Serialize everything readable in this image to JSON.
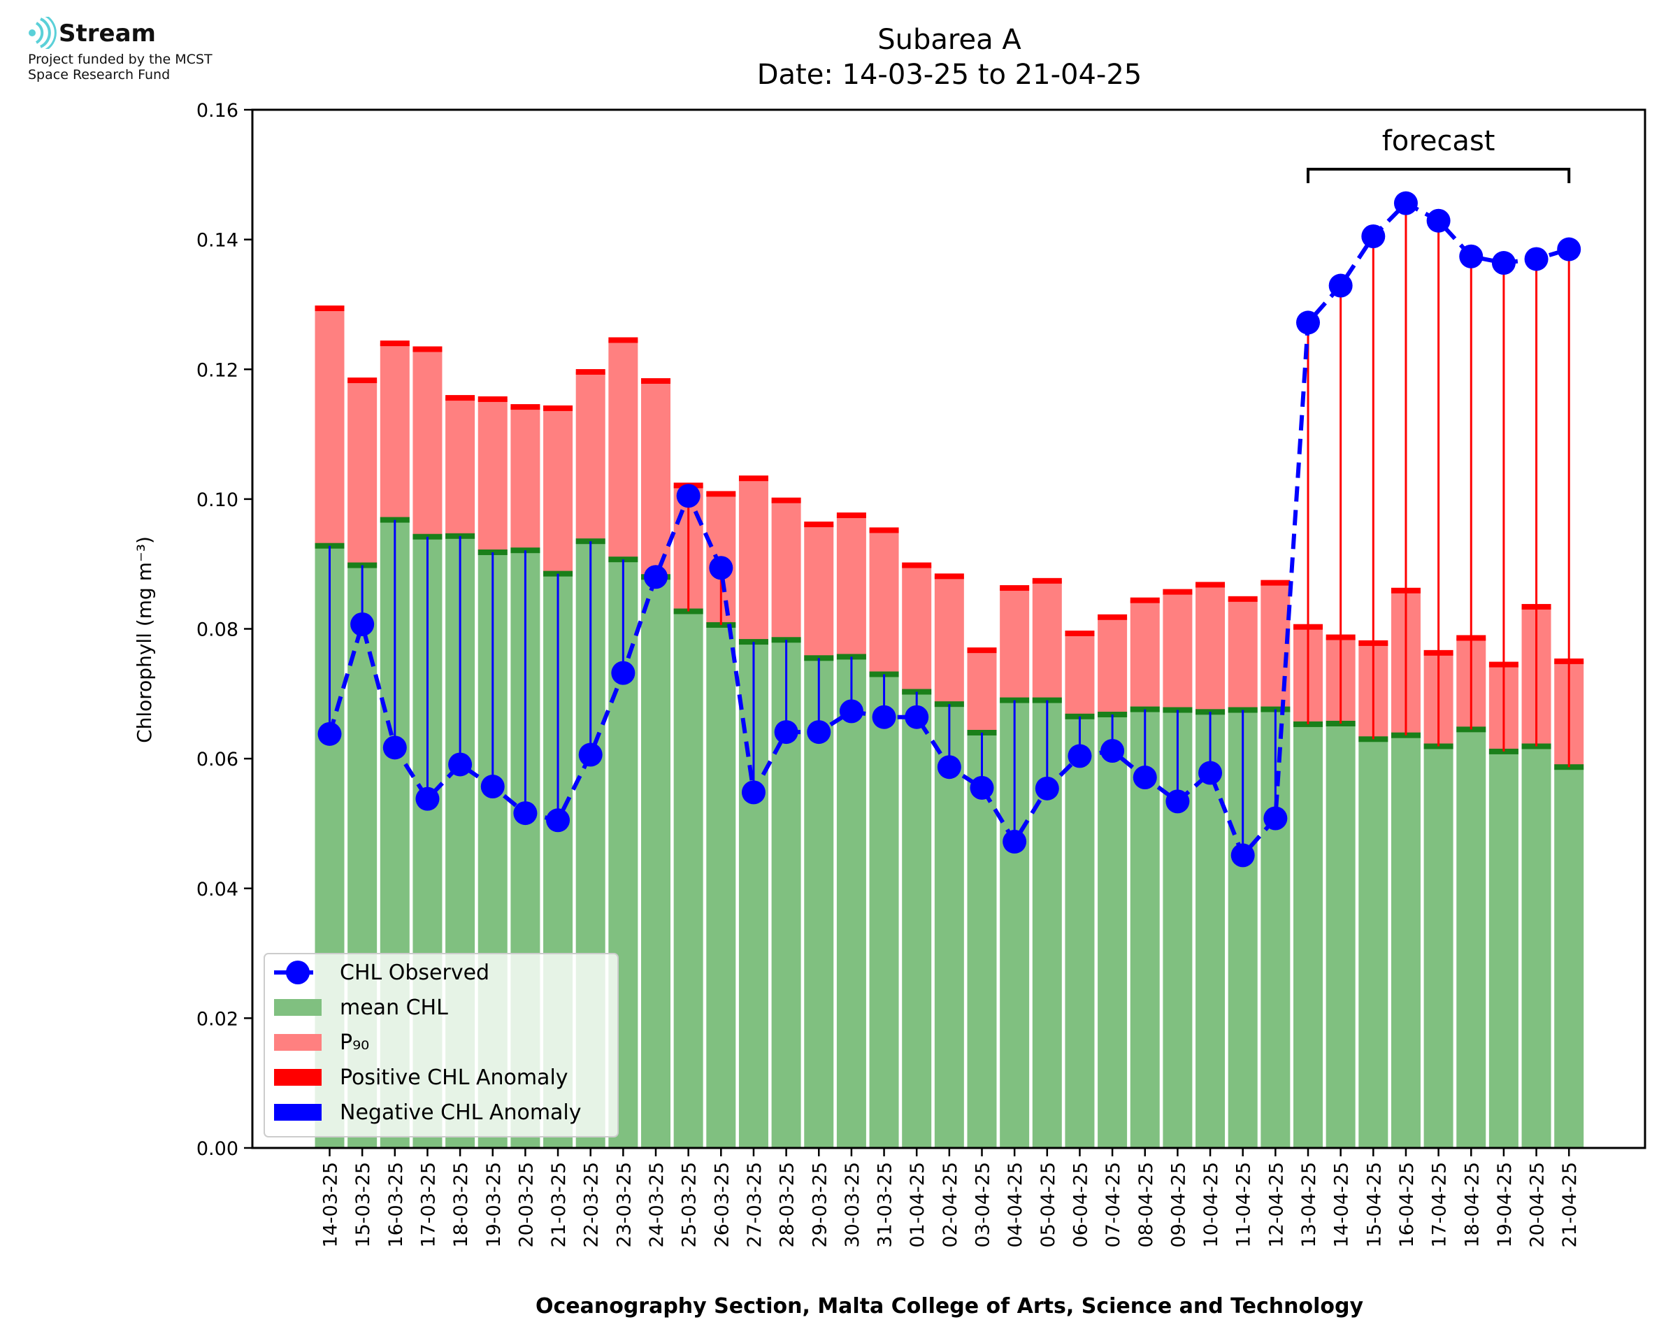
{
  "logo": {
    "brand": "Stream",
    "line1": "Project funded by the MCST",
    "line2": "Space Research Fund"
  },
  "chart_data": {
    "type": "bar",
    "title": "Subarea A",
    "subtitle": "Date: 14-03-25 to 21-04-25",
    "xlabel": "Oceanography Section, Malta College of Arts, Science and Technology",
    "ylabel": "Chlorophyll (mg m⁻³)",
    "ylim": [
      0,
      0.16
    ],
    "yticks": [
      "0.00",
      "0.02",
      "0.04",
      "0.06",
      "0.08",
      "0.10",
      "0.12",
      "0.14",
      "0.16"
    ],
    "grid": false,
    "legend_position": "lower-left",
    "forecast_label": "forecast",
    "forecast_range": [
      "13-04-25",
      "21-04-25"
    ],
    "categories": [
      "14-03-25",
      "15-03-25",
      "16-03-25",
      "17-03-25",
      "18-03-25",
      "19-03-25",
      "20-03-25",
      "21-03-25",
      "22-03-25",
      "23-03-25",
      "24-03-25",
      "25-03-25",
      "26-03-25",
      "27-03-25",
      "28-03-25",
      "29-03-25",
      "30-03-25",
      "31-03-25",
      "01-04-25",
      "02-04-25",
      "03-04-25",
      "04-04-25",
      "05-04-25",
      "06-04-25",
      "07-04-25",
      "08-04-25",
      "09-04-25",
      "10-04-25",
      "11-04-25",
      "12-04-25",
      "13-04-25",
      "14-04-25",
      "15-04-25",
      "16-04-25",
      "17-04-25",
      "18-04-25",
      "19-04-25",
      "20-04-25",
      "21-04-25"
    ],
    "series": [
      {
        "name": "CHL Observed",
        "color": "#0000ff",
        "values": [
          0.0638,
          0.0807,
          0.0617,
          0.0538,
          0.0591,
          0.0557,
          0.0516,
          0.0505,
          0.0606,
          0.0732,
          0.088,
          0.1005,
          0.0894,
          0.0548,
          0.0641,
          0.0641,
          0.0673,
          0.0664,
          0.0664,
          0.0587,
          0.0555,
          0.0472,
          0.0554,
          0.0604,
          0.0612,
          0.0571,
          0.0534,
          0.0578,
          0.0451,
          0.0508,
          0.1272,
          0.1329,
          0.1405,
          0.1456,
          0.1429,
          0.1374,
          0.1364,
          0.137,
          0.1385
        ]
      },
      {
        "name": "mean CHL",
        "color": "#80c080",
        "values": [
          0.0928,
          0.0898,
          0.0968,
          0.0942,
          0.0943,
          0.0918,
          0.0921,
          0.0885,
          0.0935,
          0.0907,
          0.088,
          0.0827,
          0.0806,
          0.078,
          0.0783,
          0.0755,
          0.0757,
          0.073,
          0.0703,
          0.0684,
          0.064,
          0.069,
          0.069,
          0.0665,
          0.0668,
          0.0676,
          0.0675,
          0.0672,
          0.0675,
          0.0676,
          0.0653,
          0.0654,
          0.063,
          0.0636,
          0.0619,
          0.0645,
          0.0611,
          0.0619,
          0.0587
        ]
      },
      {
        "name": "P₉₀",
        "color": "#ff8080",
        "values": [
          0.1294,
          0.1183,
          0.124,
          0.1231,
          0.1156,
          0.1154,
          0.1142,
          0.114,
          0.1196,
          0.1245,
          0.1182,
          0.1021,
          0.1008,
          0.1032,
          0.0998,
          0.0961,
          0.0975,
          0.0952,
          0.0898,
          0.0881,
          0.0767,
          0.0863,
          0.0874,
          0.0793,
          0.0818,
          0.0844,
          0.0857,
          0.0868,
          0.0846,
          0.0871,
          0.0803,
          0.0787,
          0.0778,
          0.0859,
          0.0763,
          0.0786,
          0.0745,
          0.0834,
          0.075
        ]
      },
      {
        "name": "Positive CHL Anomaly",
        "color": "#ff0000"
      },
      {
        "name": "Negative CHL Anomaly",
        "color": "#0000ff"
      }
    ]
  }
}
